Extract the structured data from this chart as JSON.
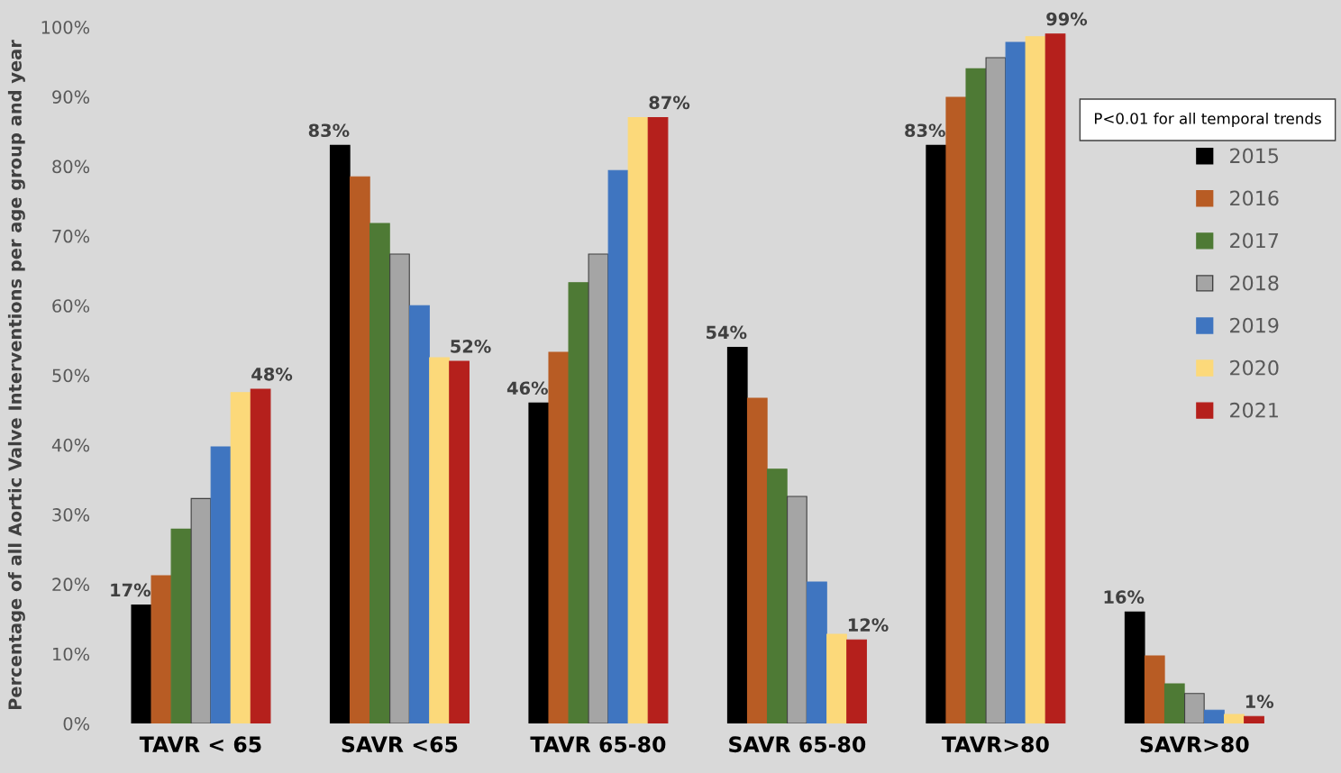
{
  "chart_data": {
    "type": "bar",
    "ylabel": "Percentage of all Aortic Valve Interventions per age group and year",
    "categories": [
      "TAVR < 65",
      "SAVR <65",
      "TAVR 65-80",
      "SAVR 65-80",
      "TAVR>80",
      "SAVR>80"
    ],
    "series": [
      {
        "name": "2015",
        "color": "#000000",
        "values": [
          17,
          83,
          46,
          54,
          83,
          16
        ],
        "value_labels": [
          "17%",
          "83%",
          "46%",
          "54%",
          "83%",
          "16%"
        ]
      },
      {
        "name": "2016",
        "color": "#b85c24",
        "values": [
          21.2,
          78.5,
          53.3,
          46.7,
          89.9,
          9.7
        ]
      },
      {
        "name": "2017",
        "color": "#4e7a35",
        "values": [
          27.9,
          71.8,
          63.3,
          36.5,
          94,
          5.7
        ]
      },
      {
        "name": "2018",
        "color": "#a5a5a5",
        "values": [
          32.3,
          67.4,
          67.4,
          32.6,
          95.6,
          4.3
        ]
      },
      {
        "name": "2019",
        "color": "#3f75c0",
        "values": [
          39.7,
          60,
          79.4,
          20.3,
          97.8,
          1.9
        ]
      },
      {
        "name": "2020",
        "color": "#fcd97a",
        "values": [
          47.5,
          52.5,
          87,
          12.8,
          98.6,
          1.3
        ]
      },
      {
        "name": "2021",
        "color": "#b5201c",
        "values": [
          48,
          52,
          87,
          12,
          99,
          1
        ],
        "value_labels": [
          "48%",
          "52%",
          "87%",
          "12%",
          "99%",
          "1%"
        ]
      }
    ],
    "ylim": [
      0,
      100
    ],
    "yticks": [
      {
        "value": 0,
        "label": "0%"
      },
      {
        "value": 10,
        "label": "10%"
      },
      {
        "value": 20,
        "label": "20%"
      },
      {
        "value": 30,
        "label": "30%"
      },
      {
        "value": 40,
        "label": "40%"
      },
      {
        "value": 50,
        "label": "50%"
      },
      {
        "value": 60,
        "label": "60%"
      },
      {
        "value": 70,
        "label": "70%"
      },
      {
        "value": 80,
        "label": "80%"
      },
      {
        "value": 90,
        "label": "90%"
      },
      {
        "value": 100,
        "label": "100%"
      }
    ],
    "annotations": [
      "P<0.01 for all temporal trends"
    ],
    "grid": false,
    "legend": "right"
  }
}
